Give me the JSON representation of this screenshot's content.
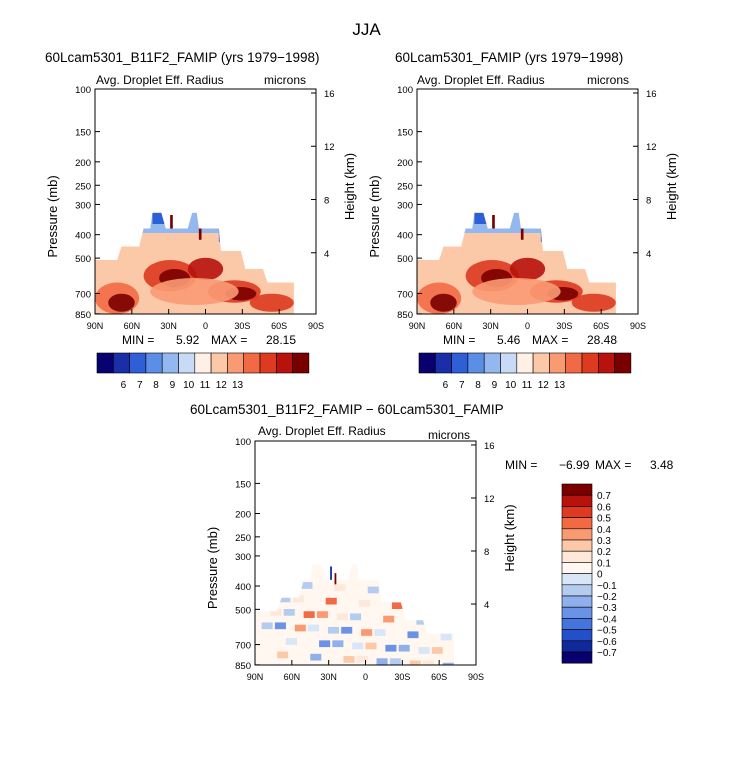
{
  "figure_title": "JJA",
  "chart_data": [
    {
      "type": "heatmap",
      "title": "60Lcam5301_B11F2_FAMIP (yrs 1979−1998)",
      "subtitle_left": "Avg. Droplet Eff. Radius",
      "subtitle_right": "microns",
      "ylabel": "Pressure (mb)",
      "ylabel_right": "Height (km)",
      "x_ticks": [
        "90N",
        "60N",
        "30N",
        "0",
        "30S",
        "60S",
        "90S"
      ],
      "y_ticks": [
        "100",
        "150",
        "200",
        "250",
        "300",
        "400",
        "500",
        "700",
        "850"
      ],
      "y_right_ticks": [
        "16",
        "12",
        "8",
        "4"
      ],
      "min_label": "MIN =",
      "min_value": "5.92",
      "max_label": "MAX =",
      "max_value": "28.15",
      "colorbar_labels": [
        "6",
        "7",
        "8",
        "9",
        "10",
        "11",
        "12",
        "13"
      ],
      "colorbar_colors": [
        "#08006e",
        "#1a2ea8",
        "#2f5fd6",
        "#5b8ee6",
        "#93b8ef",
        "#c8daf5",
        "#fff0e6",
        "#fcc9a8",
        "#f99a73",
        "#f26a44",
        "#dd3a20",
        "#b8120c",
        "#7a0000"
      ]
    },
    {
      "type": "heatmap",
      "title": "60Lcam5301_FAMIP (yrs 1979−1998)",
      "subtitle_left": "Avg. Droplet Eff. Radius",
      "subtitle_right": "microns",
      "ylabel": "Pressure (mb)",
      "ylabel_right": "Height (km)",
      "x_ticks": [
        "90N",
        "60N",
        "30N",
        "0",
        "30S",
        "60S",
        "90S"
      ],
      "y_ticks": [
        "100",
        "150",
        "200",
        "250",
        "300",
        "400",
        "500",
        "700",
        "850"
      ],
      "y_right_ticks": [
        "16",
        "12",
        "8",
        "4"
      ],
      "min_label": "MIN =",
      "min_value": "5.46",
      "max_label": "MAX =",
      "max_value": "28.48",
      "colorbar_labels": [
        "6",
        "7",
        "8",
        "9",
        "10",
        "11",
        "12",
        "13"
      ],
      "colorbar_colors": [
        "#08006e",
        "#1a2ea8",
        "#2f5fd6",
        "#5b8ee6",
        "#93b8ef",
        "#c8daf5",
        "#fff0e6",
        "#fcc9a8",
        "#f99a73",
        "#f26a44",
        "#dd3a20",
        "#b8120c",
        "#7a0000"
      ]
    },
    {
      "type": "heatmap",
      "title": "60Lcam5301_B11F2_FAMIP − 60Lcam5301_FAMIP",
      "subtitle_left": "Avg. Droplet Eff. Radius",
      "subtitle_right": "microns",
      "ylabel": "Pressure (mb)",
      "ylabel_right": "Height (km)",
      "x_ticks": [
        "90N",
        "60N",
        "30N",
        "0",
        "30S",
        "60S",
        "90S"
      ],
      "y_ticks": [
        "100",
        "150",
        "200",
        "250",
        "300",
        "400",
        "500",
        "700",
        "850"
      ],
      "y_right_ticks": [
        "16",
        "12",
        "8",
        "4"
      ],
      "min_label": "MIN =",
      "min_value": "−6.99",
      "max_label": "MAX =",
      "max_value": "3.48",
      "colorbar_labels": [
        "0.7",
        "0.6",
        "0.5",
        "0.4",
        "0.3",
        "0.2",
        "0.1",
        "0",
        "−0.1",
        "−0.2",
        "−0.3",
        "−0.4",
        "−0.5",
        "−0.6",
        "−0.7"
      ],
      "colorbar_colors": [
        "#7a0000",
        "#b8120c",
        "#dd3a20",
        "#f26a44",
        "#f99a73",
        "#fcc9a8",
        "#fde8da",
        "#fff7f0",
        "#d8e6f7",
        "#b5ccf1",
        "#8fb0ec",
        "#6a93e6",
        "#4474dc",
        "#2350c8",
        "#10289a",
        "#08006e"
      ]
    }
  ]
}
